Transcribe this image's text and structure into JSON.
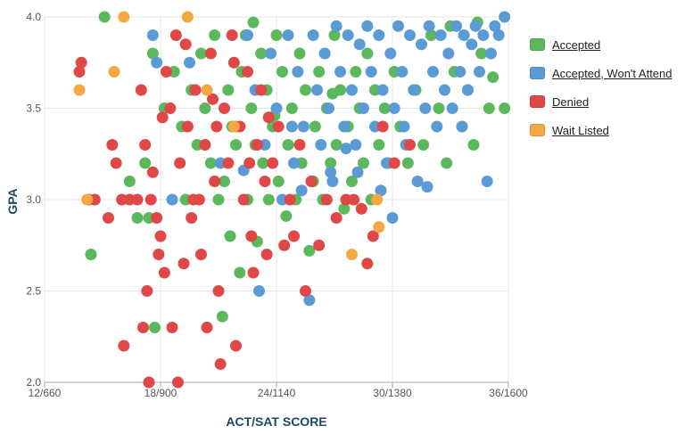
{
  "chart_data": {
    "type": "scatter",
    "xlabel": "ACT/SAT SCORE",
    "ylabel": "GPA",
    "xlim": [
      12,
      36
    ],
    "ylim": [
      2.0,
      4.0
    ],
    "x_ticks": [
      {
        "value": 12,
        "label": "12/660"
      },
      {
        "value": 18,
        "label": "18/900"
      },
      {
        "value": 24,
        "label": "24/1140"
      },
      {
        "value": 30,
        "label": "30/1380"
      },
      {
        "value": 36,
        "label": "36/1600"
      }
    ],
    "y_ticks": [
      {
        "value": 2.0,
        "label": "2.0"
      },
      {
        "value": 2.5,
        "label": "2.5"
      },
      {
        "value": 3.0,
        "label": "3.0"
      },
      {
        "value": 3.5,
        "label": "3.5"
      },
      {
        "value": 4.0,
        "label": "4.0"
      }
    ],
    "grid": true,
    "legend_position": "right",
    "series": [
      {
        "name": "Accepted",
        "color": "#5cb85c",
        "points": [
          [
            14.4,
            2.7
          ],
          [
            15.1,
            4.0
          ],
          [
            16.4,
            3.1
          ],
          [
            16.8,
            2.9
          ],
          [
            17.2,
            3.2
          ],
          [
            17.4,
            2.9
          ],
          [
            17.6,
            3.8
          ],
          [
            17.7,
            2.3
          ],
          [
            18.2,
            3.5
          ],
          [
            18.7,
            3.7
          ],
          [
            19.1,
            3.4
          ],
          [
            19.3,
            3.0
          ],
          [
            19.6,
            3.6
          ],
          [
            19.9,
            3.3
          ],
          [
            20.1,
            3.8
          ],
          [
            20.3,
            3.5
          ],
          [
            20.6,
            3.2
          ],
          [
            20.8,
            3.9
          ],
          [
            21.0,
            3.0
          ],
          [
            21.2,
            2.36
          ],
          [
            21.3,
            3.1
          ],
          [
            21.5,
            3.6
          ],
          [
            21.6,
            2.8
          ],
          [
            21.7,
            3.4
          ],
          [
            21.9,
            3.3
          ],
          [
            22.1,
            2.6
          ],
          [
            22.2,
            3.7
          ],
          [
            22.4,
            3.9
          ],
          [
            22.5,
            3.0
          ],
          [
            22.7,
            3.5
          ],
          [
            22.9,
            3.3
          ],
          [
            23.0,
            2.77
          ],
          [
            23.2,
            3.8
          ],
          [
            23.3,
            3.2
          ],
          [
            23.5,
            3.6
          ],
          [
            23.6,
            3.0
          ],
          [
            23.8,
            3.4
          ],
          [
            24.0,
            3.9
          ],
          [
            24.1,
            3.1
          ],
          [
            24.3,
            3.7
          ],
          [
            24.5,
            2.91
          ],
          [
            24.6,
            3.3
          ],
          [
            24.8,
            3.5
          ],
          [
            25.0,
            3.0
          ],
          [
            25.2,
            3.8
          ],
          [
            25.3,
            3.2
          ],
          [
            25.5,
            3.6
          ],
          [
            25.7,
            2.72
          ],
          [
            25.9,
            3.1
          ],
          [
            26.0,
            3.4
          ],
          [
            26.2,
            3.7
          ],
          [
            26.4,
            3.0
          ],
          [
            26.6,
            3.5
          ],
          [
            26.8,
            3.2
          ],
          [
            27.0,
            3.9
          ],
          [
            27.1,
            3.3
          ],
          [
            27.3,
            3.6
          ],
          [
            27.5,
            2.95
          ],
          [
            27.7,
            3.4
          ],
          [
            27.9,
            3.1
          ],
          [
            28.1,
            3.7
          ],
          [
            28.3,
            3.5
          ],
          [
            28.5,
            3.2
          ],
          [
            28.7,
            3.8
          ],
          [
            28.9,
            3.0
          ],
          [
            29.1,
            3.6
          ],
          [
            29.3,
            3.3
          ],
          [
            29.6,
            3.5
          ],
          [
            29.8,
            3.2
          ],
          [
            30.1,
            3.7
          ],
          [
            30.4,
            3.4
          ],
          [
            30.8,
            3.2
          ],
          [
            31.2,
            3.6
          ],
          [
            31.6,
            3.3
          ],
          [
            32.0,
            3.9
          ],
          [
            32.4,
            3.5
          ],
          [
            32.8,
            3.2
          ],
          [
            33.2,
            3.7
          ],
          [
            33.6,
            3.4
          ],
          [
            33.9,
            3.6
          ],
          [
            34.2,
            3.3
          ],
          [
            34.6,
            3.8
          ],
          [
            35.0,
            3.5
          ],
          [
            35.2,
            3.67
          ],
          [
            35.8,
            3.5
          ],
          [
            34.4,
            3.97
          ],
          [
            33.0,
            3.95
          ],
          [
            22.8,
            3.97
          ],
          [
            23.9,
            3.46
          ],
          [
            26.9,
            3.58
          ]
        ]
      },
      {
        "name": "Accepted, Won't Attend",
        "color": "#5b9bd5",
        "points": [
          [
            17.6,
            3.9
          ],
          [
            17.8,
            3.75
          ],
          [
            18.6,
            3.0
          ],
          [
            19.5,
            3.75
          ],
          [
            20.3,
            3.3
          ],
          [
            21.1,
            3.2
          ],
          [
            21.9,
            3.4
          ],
          [
            22.5,
            3.9
          ],
          [
            22.9,
            3.6
          ],
          [
            23.1,
            2.5
          ],
          [
            23.4,
            3.3
          ],
          [
            23.7,
            3.8
          ],
          [
            24.0,
            3.5
          ],
          [
            24.3,
            3.0
          ],
          [
            24.6,
            3.9
          ],
          [
            24.9,
            3.2
          ],
          [
            25.1,
            3.7
          ],
          [
            25.4,
            3.4
          ],
          [
            25.7,
            2.45
          ],
          [
            25.9,
            3.9
          ],
          [
            26.1,
            3.6
          ],
          [
            26.3,
            3.3
          ],
          [
            26.5,
            3.8
          ],
          [
            26.7,
            3.5
          ],
          [
            26.9,
            3.1
          ],
          [
            27.1,
            3.95
          ],
          [
            27.3,
            3.7
          ],
          [
            27.5,
            3.4
          ],
          [
            27.7,
            3.9
          ],
          [
            27.9,
            3.6
          ],
          [
            28.1,
            3.3
          ],
          [
            28.3,
            3.85
          ],
          [
            28.5,
            3.5
          ],
          [
            28.7,
            3.95
          ],
          [
            28.9,
            3.7
          ],
          [
            29.1,
            3.4
          ],
          [
            29.3,
            3.9
          ],
          [
            29.5,
            3.6
          ],
          [
            29.7,
            3.2
          ],
          [
            29.9,
            3.8
          ],
          [
            30.0,
            2.9
          ],
          [
            30.1,
            3.5
          ],
          [
            30.3,
            3.95
          ],
          [
            30.5,
            3.7
          ],
          [
            30.7,
            3.3
          ],
          [
            30.9,
            3.9
          ],
          [
            31.1,
            3.6
          ],
          [
            31.3,
            3.1
          ],
          [
            31.5,
            3.85
          ],
          [
            31.7,
            3.5
          ],
          [
            31.9,
            3.95
          ],
          [
            32.1,
            3.7
          ],
          [
            32.3,
            3.4
          ],
          [
            32.5,
            3.9
          ],
          [
            32.7,
            3.6
          ],
          [
            32.9,
            3.8
          ],
          [
            33.1,
            3.5
          ],
          [
            33.3,
            3.95
          ],
          [
            33.5,
            3.7
          ],
          [
            33.7,
            3.9
          ],
          [
            33.9,
            3.6
          ],
          [
            34.1,
            3.85
          ],
          [
            34.3,
            3.95
          ],
          [
            34.5,
            3.7
          ],
          [
            34.7,
            3.9
          ],
          [
            34.9,
            3.1
          ],
          [
            35.1,
            3.8
          ],
          [
            35.3,
            3.95
          ],
          [
            35.5,
            3.9
          ],
          [
            35.8,
            4.0
          ],
          [
            25.3,
            3.05
          ],
          [
            26.8,
            3.15
          ],
          [
            28.2,
            3.15
          ],
          [
            29.4,
            3.05
          ],
          [
            31.8,
            3.07
          ],
          [
            33.6,
            3.4
          ],
          [
            30.6,
            3.4
          ],
          [
            27.6,
            3.28
          ],
          [
            24.8,
            3.4
          ],
          [
            22.3,
            3.16
          ]
        ]
      },
      {
        "name": "Denied",
        "color": "#e04848",
        "points": [
          [
            13.8,
            3.7
          ],
          [
            13.9,
            3.75
          ],
          [
            14.3,
            3.0
          ],
          [
            14.6,
            3.0
          ],
          [
            15.5,
            3.3
          ],
          [
            15.7,
            3.2
          ],
          [
            16.1,
            2.2
          ],
          [
            16.4,
            3.0
          ],
          [
            16.8,
            3.0
          ],
          [
            17.0,
            3.6
          ],
          [
            17.2,
            3.3
          ],
          [
            17.3,
            2.5
          ],
          [
            17.4,
            2.0
          ],
          [
            17.6,
            3.15
          ],
          [
            17.8,
            2.9
          ],
          [
            17.9,
            2.7
          ],
          [
            18.0,
            2.8
          ],
          [
            18.2,
            2.6
          ],
          [
            18.3,
            3.7
          ],
          [
            18.5,
            3.5
          ],
          [
            18.6,
            2.3
          ],
          [
            18.8,
            3.9
          ],
          [
            19.0,
            3.2
          ],
          [
            19.2,
            2.65
          ],
          [
            19.4,
            3.4
          ],
          [
            19.6,
            2.9
          ],
          [
            19.8,
            3.6
          ],
          [
            20.0,
            3.0
          ],
          [
            20.1,
            2.7
          ],
          [
            20.3,
            3.3
          ],
          [
            20.4,
            2.3
          ],
          [
            20.6,
            3.8
          ],
          [
            20.8,
            3.1
          ],
          [
            21.0,
            2.5
          ],
          [
            21.1,
            2.1
          ],
          [
            21.3,
            3.5
          ],
          [
            21.5,
            3.2
          ],
          [
            21.7,
            3.9
          ],
          [
            21.9,
            2.2
          ],
          [
            22.1,
            3.4
          ],
          [
            22.3,
            3.0
          ],
          [
            22.5,
            3.7
          ],
          [
            22.7,
            2.8
          ],
          [
            22.8,
            2.6
          ],
          [
            23.0,
            3.3
          ],
          [
            23.2,
            3.6
          ],
          [
            23.4,
            3.1
          ],
          [
            23.5,
            2.7
          ],
          [
            23.8,
            3.2
          ],
          [
            24.1,
            3.4
          ],
          [
            24.4,
            2.75
          ],
          [
            24.7,
            3.0
          ],
          [
            24.9,
            2.8
          ],
          [
            25.2,
            3.3
          ],
          [
            25.5,
            2.5
          ],
          [
            25.8,
            3.1
          ],
          [
            26.2,
            2.75
          ],
          [
            26.6,
            3.0
          ],
          [
            27.1,
            2.9
          ],
          [
            27.6,
            3.0
          ],
          [
            28.0,
            3.0
          ],
          [
            28.4,
            2.95
          ],
          [
            28.7,
            2.65
          ],
          [
            29.0,
            2.8
          ],
          [
            29.5,
            3.4
          ],
          [
            30.1,
            3.2
          ],
          [
            30.9,
            3.3
          ],
          [
            16.0,
            3.0
          ],
          [
            17.1,
            2.3
          ],
          [
            18.1,
            3.45
          ],
          [
            19.3,
            3.85
          ],
          [
            20.7,
            3.55
          ],
          [
            21.8,
            3.75
          ],
          [
            22.6,
            3.2
          ],
          [
            18.9,
            2.0
          ],
          [
            17.5,
            3.0
          ],
          [
            19.7,
            3.0
          ],
          [
            20.9,
            3.4
          ],
          [
            23.6,
            3.45
          ],
          [
            15.3,
            2.9
          ]
        ]
      },
      {
        "name": "Wait Listed",
        "color": "#f5a742",
        "points": [
          [
            13.8,
            3.6
          ],
          [
            14.2,
            3.0
          ],
          [
            15.6,
            3.7
          ],
          [
            16.1,
            4.0
          ],
          [
            19.4,
            4.0
          ],
          [
            20.4,
            3.6
          ],
          [
            21.8,
            3.4
          ],
          [
            27.9,
            2.7
          ],
          [
            29.2,
            3.0
          ],
          [
            29.3,
            2.85
          ]
        ]
      }
    ]
  }
}
